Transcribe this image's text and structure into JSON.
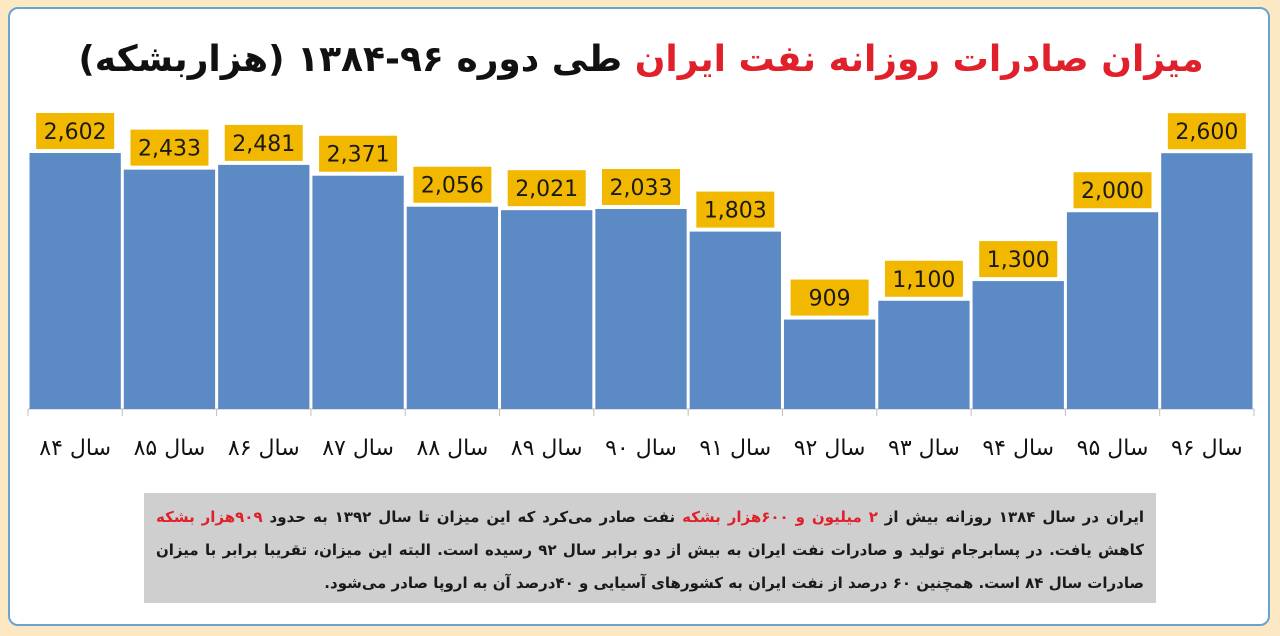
{
  "title": {
    "part_red": "میزان صادرات روزانه نفت ایران",
    "part_black": "طی دوره ۹۶-۱۳۸۴ (هزاربشکه)"
  },
  "colors": {
    "bar": "#5b8ac4",
    "label_bg": "#f2b800",
    "title_red": "#e0202a",
    "note_bg": "#cfcfcf",
    "frame_border": "#6aa3cf",
    "page_bg": "#fde8c4"
  },
  "chart_data": {
    "type": "bar",
    "title": "میزان صادرات روزانه نفت ایران طی دوره ۹۶-۱۳۸۴ (هزاربشکه)",
    "categories": [
      "سال ۸۴",
      "سال ۸۵",
      "سال ۸۶",
      "سال ۸۷",
      "سال ۸۸",
      "سال ۸۹",
      "سال ۹۰",
      "سال ۹۱",
      "سال ۹۲",
      "سال ۹۳",
      "سال ۹۴",
      "سال ۹۵",
      "سال ۹۶"
    ],
    "values": [
      2602,
      2433,
      2481,
      2371,
      2056,
      2021,
      2033,
      1803,
      909,
      1100,
      1300,
      2000,
      2600
    ],
    "value_labels": [
      "2,602",
      "2,433",
      "2,481",
      "2,371",
      "2,056",
      "2,021",
      "2,033",
      "1,803",
      "909",
      "1,100",
      "1,300",
      "2,000",
      "2,600"
    ],
    "ylim": [
      0,
      2602
    ],
    "grid": false,
    "legend": "none",
    "xlabel": "",
    "ylabel": ""
  },
  "note": {
    "s1": "ایران در سال ۱۳۸۴ روزانه بیش از ",
    "s2": "۲ میلیون و ۶۰۰هزار بشکه",
    "s3": " نفت صادر می‌کرد که این میزان تا سال ۱۳۹۲ به حدود ",
    "s4": "۹۰۹هزار بشکه",
    "s5": " کاهش یافت. در پسابرجام تولید و صادرات نفت ایران به بیش از دو برابر سال ۹۲ رسیده است. البته این میزان، تقریبا برابر با میزان صادرات سال ۸۴ است. همچنین ۶۰ درصد از نفت ایران به کشورهای آسیایی و ۴۰درصد آن به اروپا صادر می‌شود."
  }
}
